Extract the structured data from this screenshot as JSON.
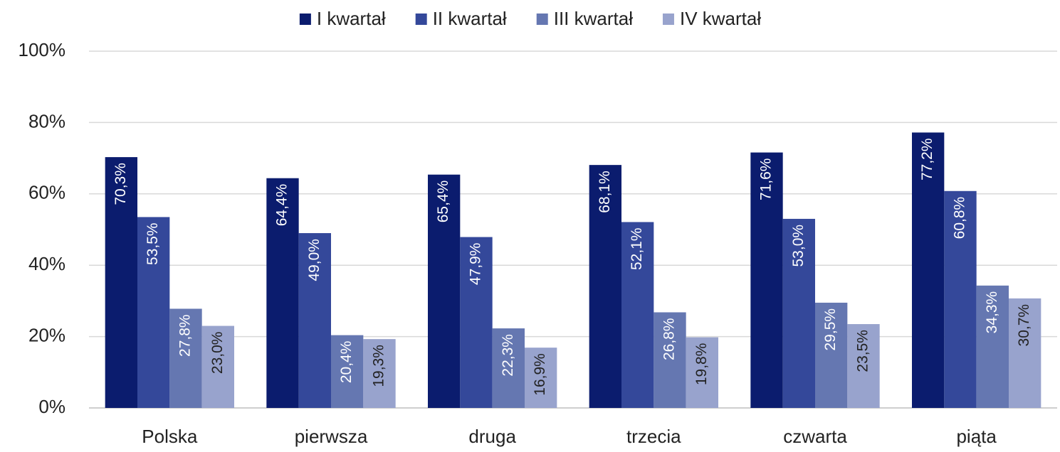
{
  "chart_data": {
    "type": "bar",
    "categories": [
      "Polska",
      "pierwsza",
      "druga",
      "trzecia",
      "czwarta",
      "piąta"
    ],
    "series": [
      {
        "name": "I kwartał",
        "color": "#0b1c6e",
        "values": [
          70.3,
          64.4,
          65.4,
          68.1,
          71.6,
          77.2
        ],
        "value_labels": [
          "70,3%",
          "64,4%",
          "65,4%",
          "68,1%",
          "71,6%",
          "77,2%"
        ]
      },
      {
        "name": "II kwartał",
        "color": "#34489a",
        "values": [
          53.5,
          49.0,
          47.9,
          52.1,
          53.0,
          60.8
        ],
        "value_labels": [
          "53,5%",
          "49,0%",
          "47,9%",
          "52,1%",
          "53,0%",
          "60,8%"
        ]
      },
      {
        "name": "III kwartał",
        "color": "#6577b1",
        "values": [
          27.8,
          20.4,
          22.3,
          26.8,
          29.5,
          34.3
        ],
        "value_labels": [
          "27,8%",
          "20,4%",
          "22,3%",
          "26,8%",
          "29,5%",
          "34,3%"
        ]
      },
      {
        "name": "IV kwartał",
        "color": "#98a3cd",
        "values": [
          23.0,
          19.3,
          16.9,
          19.8,
          23.5,
          30.7
        ],
        "value_labels": [
          "23,0%",
          "19,3%",
          "16,9%",
          "19,8%",
          "23,5%",
          "30,7%"
        ]
      }
    ],
    "ylim": [
      0,
      100
    ],
    "yticks": [
      {
        "value": 0,
        "label": "0%"
      },
      {
        "value": 20,
        "label": "20%"
      },
      {
        "value": 40,
        "label": "40%"
      },
      {
        "value": 60,
        "label": "60%"
      },
      {
        "value": 80,
        "label": "80%"
      },
      {
        "value": 100,
        "label": "100%"
      }
    ],
    "grid": true,
    "legend": "top"
  }
}
